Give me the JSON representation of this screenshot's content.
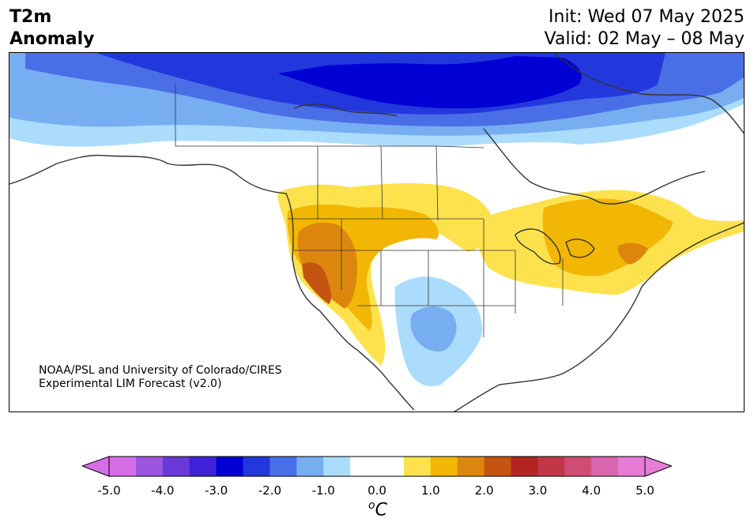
{
  "title": {
    "left_line1": "T2m",
    "left_line2": "Anomaly",
    "init": "Init: Wed 07 May 2025",
    "valid": "Valid: 02 May – 08 May"
  },
  "credit": {
    "line1": "NOAA/PSL and University of Colorado/CIRES",
    "line2": "Experimental LIM Forecast (v2.0)"
  },
  "colorbar": {
    "unit_main": "C",
    "unit_sup": "o",
    "ticks": [
      "-5.0",
      "-4.0",
      "-3.0",
      "-2.0",
      "-1.0",
      "0.0",
      "1.0",
      "2.0",
      "3.0",
      "4.0",
      "5.0"
    ],
    "colors": [
      "#d56ee6",
      "#9b56e0",
      "#6a3ad8",
      "#3f22d6",
      "#0000d4",
      "#2338dc",
      "#4a6ee6",
      "#77aef2",
      "#acdcfb",
      "#ffffff",
      "#ffffff",
      "#fde24e",
      "#f2b605",
      "#dd860e",
      "#c45410",
      "#b22522",
      "#c03848",
      "#cf4d74",
      "#d867b0",
      "#e67cd6"
    ],
    "under_color": "#d56ee6",
    "over_color": "#e67cd6"
  },
  "map_colors": {
    "blue1": "#acdcfb",
    "blue2": "#77aef2",
    "blue3": "#4a6ee6",
    "blue4": "#2338dc",
    "blue5": "#0000d4",
    "yellow": "#fde24e",
    "gold": "#f2b605",
    "orange": "#dd860e",
    "rust": "#c45410"
  }
}
